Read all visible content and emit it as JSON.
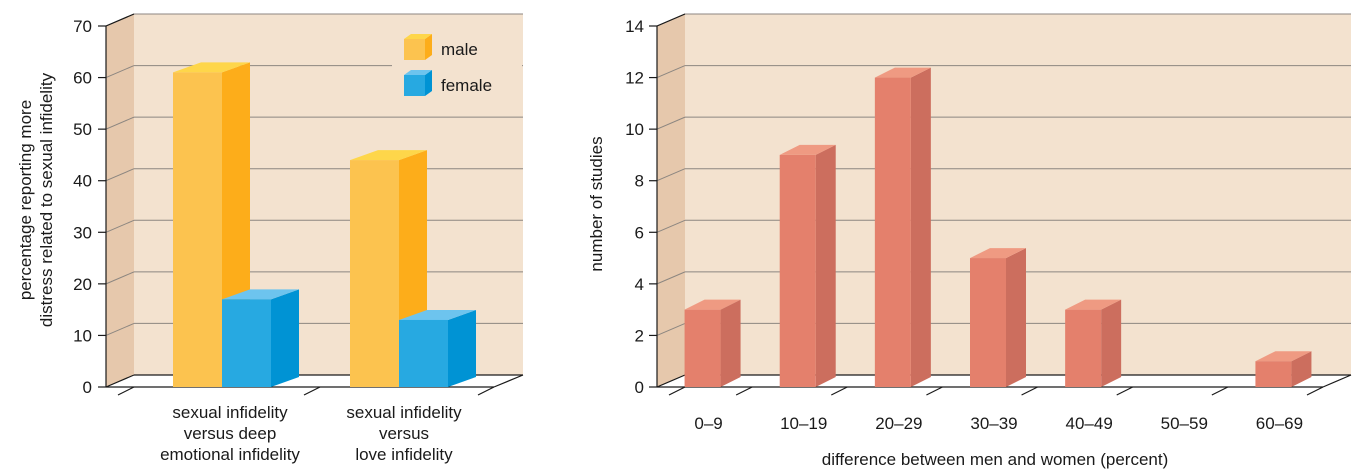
{
  "colors": {
    "panel_back": "#f3e2cf",
    "panel_side": "#e6c8ac",
    "male_front": "#fcc34f",
    "male_side": "#fdad1a",
    "male_top": "#fed64a",
    "female_front": "#27a9e1",
    "female_side": "#0093d4",
    "female_top": "#6dc4ee",
    "studies_front": "#e4806c",
    "studies_side": "#cc6e5e",
    "studies_top": "#ef9a82"
  },
  "chart_data": [
    {
      "type": "bar",
      "title": "",
      "ylabel": [
        "percentage reporting more",
        "distress related to sexual infidelity"
      ],
      "xlabel": "",
      "ylim": [
        0,
        70
      ],
      "yticks": [
        "0",
        "10",
        "20",
        "30",
        "40",
        "50",
        "60",
        "70"
      ],
      "grid": true,
      "legend_position": "top-right",
      "categories": [
        [
          "sexual infidelity",
          "versus deep",
          "emotional infidelity"
        ],
        [
          "sexual infidelity",
          "versus",
          "love infidelity"
        ]
      ],
      "series": [
        {
          "name": "male",
          "values": [
            61,
            44
          ]
        },
        {
          "name": "female",
          "values": [
            17,
            13
          ]
        }
      ]
    },
    {
      "type": "bar",
      "title": "",
      "ylabel": "number of studies",
      "xlabel": "difference between men and women (percent)",
      "ylim": [
        0,
        14
      ],
      "yticks": [
        "0",
        "2",
        "4",
        "6",
        "8",
        "10",
        "12",
        "14"
      ],
      "grid": true,
      "categories": [
        "0–9",
        "10–19",
        "20–29",
        "30–39",
        "40–49",
        "50–59",
        "60–69"
      ],
      "values": [
        3,
        9,
        12,
        5,
        3,
        0,
        1
      ]
    }
  ]
}
